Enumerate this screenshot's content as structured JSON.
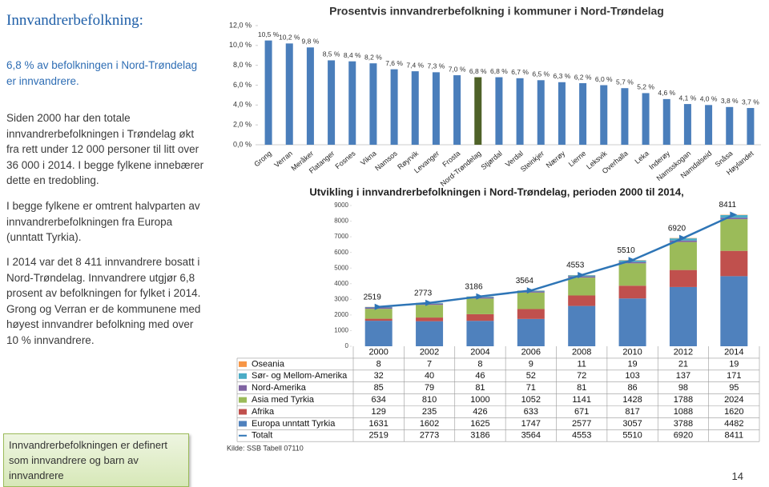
{
  "slide": {
    "title": "Innvandrerbefolkning:",
    "highlight": "6,8 % av befolkningen i Nord-Trøndelag er innvandrere.",
    "paragraphs": [
      "Siden 2000 har den totale innvandrerbefolkningen i Trøndelag økt fra rett under 12 000 personer til litt over 36 000 i 2014. I begge fylkene innebærer dette en tredobling.",
      "I begge fylkene er omtrent halvparten av innvandrerbefolkningen fra Europa (unntatt Tyrkia).",
      "I 2014 var det 8 411 innvandrere bosatt i Nord-Trøndelag. Innvandrere utgjør 6,8 prosent av befolkningen for fylket i 2014. Grong og Verran er de kommunene med høyest innvandrer befolkning med over 10 % innvandrere."
    ],
    "note": "Innvandrerbefolkningen er definert som innvandrere og barn av innvandrere",
    "source": "Kilde: SSB Tabell 07110",
    "page_number": "14"
  },
  "chart_data": [
    {
      "type": "bar",
      "title": "Prosentvis innvandrerbefolkning i kommuner i Nord-Trøndelag",
      "categories": [
        "Grong",
        "Verran",
        "Meråker",
        "Flatanger",
        "Fosnes",
        "Vikna",
        "Namsos",
        "Røyrvik",
        "Levanger",
        "Frosta",
        "Nord-Trøndelag",
        "Stjørdal",
        "Verdal",
        "Steinkjer",
        "Nærøy",
        "Lierne",
        "Leksvik",
        "Overhalla",
        "Leka",
        "Inderøy",
        "Namsskogan",
        "Namdalseid",
        "Snåsa",
        "Høylandet"
      ],
      "values": [
        10.5,
        10.2,
        9.8,
        8.5,
        8.4,
        8.2,
        7.6,
        7.4,
        7.3,
        7.0,
        6.8,
        6.8,
        6.7,
        6.5,
        6.3,
        6.2,
        6.0,
        5.7,
        5.2,
        4.6,
        4.1,
        4.0,
        3.8,
        3.7
      ],
      "value_labels": [
        "10,5 %",
        "10,2 %",
        "9,8 %",
        "8,5 %",
        "8,4 %",
        "8,2 %",
        "7,6 %",
        "7,4 %",
        "7,3 %",
        "7,0 %",
        "6,8 %",
        "6,8 %",
        "6,7 %",
        "6,5 %",
        "6,3 %",
        "6,2 %",
        "6,0 %",
        "5,7 %",
        "5,2 %",
        "4,6 %",
        "4,1 %",
        "4,0 %",
        "3,8 %",
        "3,7 %"
      ],
      "colors": [
        "#4a7ebb",
        "#4a7ebb",
        "#4a7ebb",
        "#4a7ebb",
        "#4a7ebb",
        "#4a7ebb",
        "#4a7ebb",
        "#4a7ebb",
        "#4a7ebb",
        "#4a7ebb",
        "#4f6228",
        "#4a7ebb",
        "#4a7ebb",
        "#4a7ebb",
        "#4a7ebb",
        "#4a7ebb",
        "#4a7ebb",
        "#4a7ebb",
        "#4a7ebb",
        "#4a7ebb",
        "#4a7ebb",
        "#4a7ebb",
        "#4a7ebb",
        "#4a7ebb"
      ],
      "ylim": [
        0,
        12
      ],
      "yticks": [
        {
          "value": 0,
          "label": "0,0 %"
        },
        {
          "value": 2,
          "label": "2,0 %"
        },
        {
          "value": 4,
          "label": "4,0 %"
        },
        {
          "value": 6,
          "label": "6,0 %"
        },
        {
          "value": 8,
          "label": "8,0 %"
        },
        {
          "value": 10,
          "label": "10,0 %"
        },
        {
          "value": 12,
          "label": "12,0 %"
        }
      ],
      "grid": false
    },
    {
      "type": "stacked_bar",
      "title": "Utvikling i innvandrerbefolkningen i Nord-Trøndelag, perioden 2000 til 2014,",
      "categories": [
        "2000",
        "2002",
        "2004",
        "2006",
        "2008",
        "2010",
        "2012",
        "2014"
      ],
      "series": [
        {
          "name": "Oseania",
          "color": "#f79646",
          "values": [
            8,
            7,
            8,
            9,
            11,
            19,
            21,
            19
          ]
        },
        {
          "name": "Sør- og Mellom-Amerika",
          "color": "#4bacc6",
          "values": [
            32,
            40,
            46,
            52,
            72,
            103,
            137,
            171
          ]
        },
        {
          "name": "Nord-Amerika",
          "color": "#8064a2",
          "values": [
            85,
            79,
            81,
            71,
            81,
            86,
            98,
            95
          ]
        },
        {
          "name": "Asia med Tyrkia",
          "color": "#9bbb59",
          "values": [
            634,
            810,
            1000,
            1052,
            1141,
            1428,
            1788,
            2024
          ]
        },
        {
          "name": "Afrika",
          "color": "#c0504d",
          "values": [
            129,
            235,
            426,
            633,
            671,
            817,
            1088,
            1620
          ]
        },
        {
          "name": "Europa unntatt Tyrkia",
          "color": "#4f81bd",
          "values": [
            1631,
            1602,
            1625,
            1747,
            2577,
            3057,
            3788,
            4482
          ]
        },
        {
          "name": "Totalt",
          "color": "#2e75b6",
          "type": "line",
          "values": [
            2519,
            2773,
            3186,
            3564,
            4553,
            5510,
            6920,
            8411
          ]
        }
      ],
      "ylim": [
        0,
        9000
      ],
      "yticks": [
        0,
        1000,
        2000,
        3000,
        4000,
        5000,
        6000,
        7000,
        8000,
        9000
      ],
      "grid": false
    }
  ]
}
